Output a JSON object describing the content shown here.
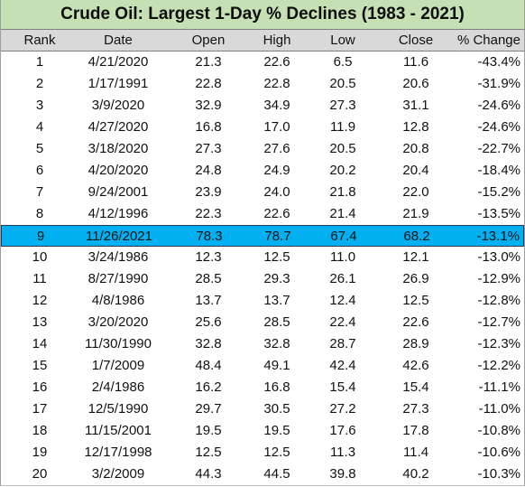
{
  "table": {
    "title": "Crude Oil: Largest 1-Day % Declines (1983 - 2021)",
    "header": [
      "Rank",
      "Date",
      "Open",
      "High",
      "Low",
      "Close",
      "% Change"
    ],
    "rows": [
      [
        "1",
        "4/21/2020",
        "21.3",
        "22.6",
        "6.5",
        "11.6",
        "-43.4%"
      ],
      [
        "2",
        "1/17/1991",
        "22.8",
        "22.8",
        "20.5",
        "20.6",
        "-31.9%"
      ],
      [
        "3",
        "3/9/2020",
        "32.9",
        "34.9",
        "27.3",
        "31.1",
        "-24.6%"
      ],
      [
        "4",
        "4/27/2020",
        "16.8",
        "17.0",
        "11.9",
        "12.8",
        "-24.6%"
      ],
      [
        "5",
        "3/18/2020",
        "27.3",
        "27.6",
        "20.5",
        "20.8",
        "-22.7%"
      ],
      [
        "6",
        "4/20/2020",
        "24.8",
        "24.9",
        "20.2",
        "20.4",
        "-18.4%"
      ],
      [
        "7",
        "9/24/2001",
        "23.9",
        "24.0",
        "21.8",
        "22.0",
        "-15.2%"
      ],
      [
        "8",
        "4/12/1996",
        "22.3",
        "22.6",
        "21.4",
        "21.9",
        "-13.5%"
      ],
      [
        "9",
        "11/26/2021",
        "78.3",
        "78.7",
        "67.4",
        "68.2",
        "-13.1%"
      ],
      [
        "10",
        "3/24/1986",
        "12.3",
        "12.5",
        "11.0",
        "12.1",
        "-13.0%"
      ],
      [
        "11",
        "8/27/1990",
        "28.5",
        "29.3",
        "26.1",
        "26.9",
        "-12.9%"
      ],
      [
        "12",
        "4/8/1986",
        "13.7",
        "13.7",
        "12.4",
        "12.5",
        "-12.8%"
      ],
      [
        "13",
        "3/20/2020",
        "25.6",
        "28.5",
        "22.4",
        "22.6",
        "-12.7%"
      ],
      [
        "14",
        "11/30/1990",
        "32.8",
        "32.8",
        "28.7",
        "28.9",
        "-12.3%"
      ],
      [
        "15",
        "1/7/2009",
        "48.4",
        "49.1",
        "42.4",
        "42.6",
        "-12.2%"
      ],
      [
        "16",
        "2/4/1986",
        "16.2",
        "16.8",
        "15.4",
        "15.4",
        "-11.1%"
      ],
      [
        "17",
        "12/5/1990",
        "29.7",
        "30.5",
        "27.2",
        "27.3",
        "-11.0%"
      ],
      [
        "18",
        "11/15/2001",
        "19.5",
        "19.5",
        "17.6",
        "17.8",
        "-10.8%"
      ],
      [
        "19",
        "12/17/1998",
        "12.5",
        "12.5",
        "11.3",
        "11.4",
        "-10.6%"
      ],
      [
        "20",
        "3/2/2009",
        "44.3",
        "44.5",
        "39.8",
        "40.2",
        "-10.3%"
      ]
    ],
    "highlighted_row": 8,
    "highlight_color": "#00b0f0"
  }
}
